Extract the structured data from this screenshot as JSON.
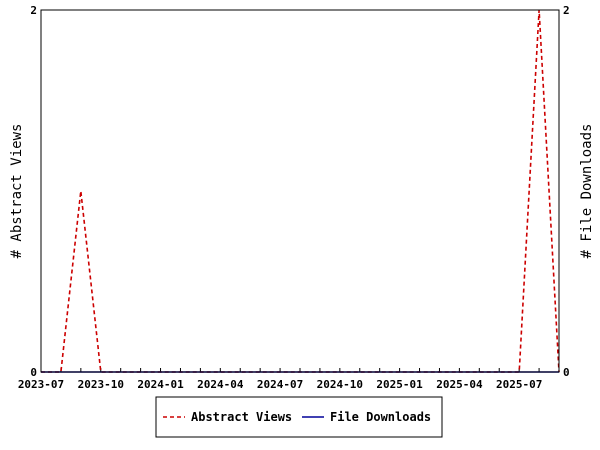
{
  "chart_data": {
    "type": "line",
    "title": "",
    "xlabel": "",
    "ylabel_left": "# Abstract Views",
    "ylabel_right": "# File Downloads",
    "x_range": [
      "2023-07-01",
      "2025-09-01"
    ],
    "y_left_range": [
      0,
      2
    ],
    "y_right_range": [
      0,
      2
    ],
    "x_tick_labels": [
      "2023-07",
      "2023-10",
      "2024-01",
      "2024-04",
      "2024-07",
      "2024-10",
      "2025-01",
      "2025-04",
      "2025-07"
    ],
    "y_left_tick_labels": [
      "0",
      "2"
    ],
    "y_right_tick_labels": [
      "0",
      "2"
    ],
    "grid": false,
    "legend_placement": "bottom",
    "x": [
      "2023-07",
      "2023-08",
      "2023-09",
      "2023-10",
      "2023-11",
      "2023-12",
      "2024-01",
      "2024-02",
      "2024-03",
      "2024-04",
      "2024-05",
      "2024-06",
      "2024-07",
      "2024-08",
      "2024-09",
      "2024-10",
      "2024-11",
      "2024-12",
      "2025-01",
      "2025-02",
      "2025-03",
      "2025-04",
      "2025-05",
      "2025-06",
      "2025-07",
      "2025-08",
      "2025-09"
    ],
    "series": [
      {
        "name": "Abstract Views",
        "axis": "left",
        "color": "#cc0000",
        "style": "dashed",
        "values": [
          0,
          0,
          1,
          0,
          0,
          0,
          0,
          0,
          0,
          0,
          0,
          0,
          0,
          0,
          0,
          0,
          0,
          0,
          0,
          0,
          0,
          0,
          0,
          0,
          0,
          2,
          0
        ]
      },
      {
        "name": "File Downloads",
        "axis": "right",
        "color": "#000099",
        "style": "solid",
        "values": [
          0,
          0,
          0,
          0,
          0,
          0,
          0,
          0,
          0,
          0,
          0,
          0,
          0,
          0,
          0,
          0,
          0,
          0,
          0,
          0,
          0,
          0,
          0,
          0,
          0,
          0,
          0
        ]
      }
    ]
  }
}
